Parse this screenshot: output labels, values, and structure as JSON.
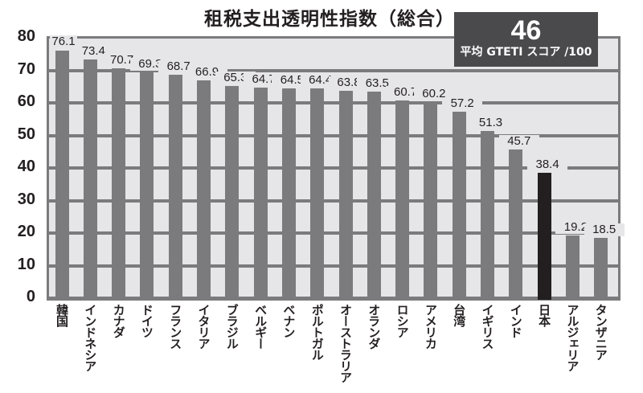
{
  "chart_data": {
    "type": "bar",
    "title": "租税支出透明性指数（総合）",
    "xlabel": "",
    "ylabel": "",
    "ylim": [
      0,
      80
    ],
    "yticks": [
      0,
      10,
      20,
      30,
      40,
      50,
      60,
      70,
      80
    ],
    "grid": true,
    "legend": null,
    "highlight_category": "日本",
    "categories": [
      "韓国",
      "インドネシア",
      "カナダ",
      "ドイツ",
      "フランス",
      "イタリア",
      "ブラジル",
      "ベルギー",
      "ベナン",
      "ポルトガル",
      "オーストラリア",
      "オランダ",
      "ロシア",
      "アメリカ",
      "台湾",
      "イギリス",
      "インド",
      "日本",
      "アルジェリア",
      "タンザニア"
    ],
    "values": [
      76.1,
      73.4,
      70.7,
      69.3,
      68.7,
      66.9,
      65.3,
      64.7,
      64.5,
      64.4,
      63.8,
      63.5,
      60.7,
      60.2,
      57.2,
      51.3,
      45.7,
      38.4,
      19.2,
      18.5
    ],
    "value_labels": [
      "76.1",
      "73.4",
      "70.7",
      "69.3",
      "68.7",
      "66.9",
      "65.3",
      "64.7",
      "64.5",
      "64.4",
      "63.8",
      "63.5",
      "60.7",
      "60.2",
      "57.2",
      "51.3",
      "45.7",
      "38.4",
      "19.2",
      "18.5"
    ],
    "annotations": [
      {
        "text": "46",
        "subtext": "平均 GTETI スコア /100",
        "position": "top-right"
      }
    ]
  },
  "colors": {
    "bar": "#7b7b7d",
    "highlight_bar": "#231f20",
    "plot_background": "#e6e6e8",
    "badge_background": "#4a4a4c"
  },
  "badge": {
    "value": "46",
    "caption": "平均 GTETI スコア /100"
  },
  "yaxis": {
    "ticks": [
      "80",
      "70",
      "60",
      "50",
      "40",
      "30",
      "20",
      "10",
      "0"
    ]
  }
}
